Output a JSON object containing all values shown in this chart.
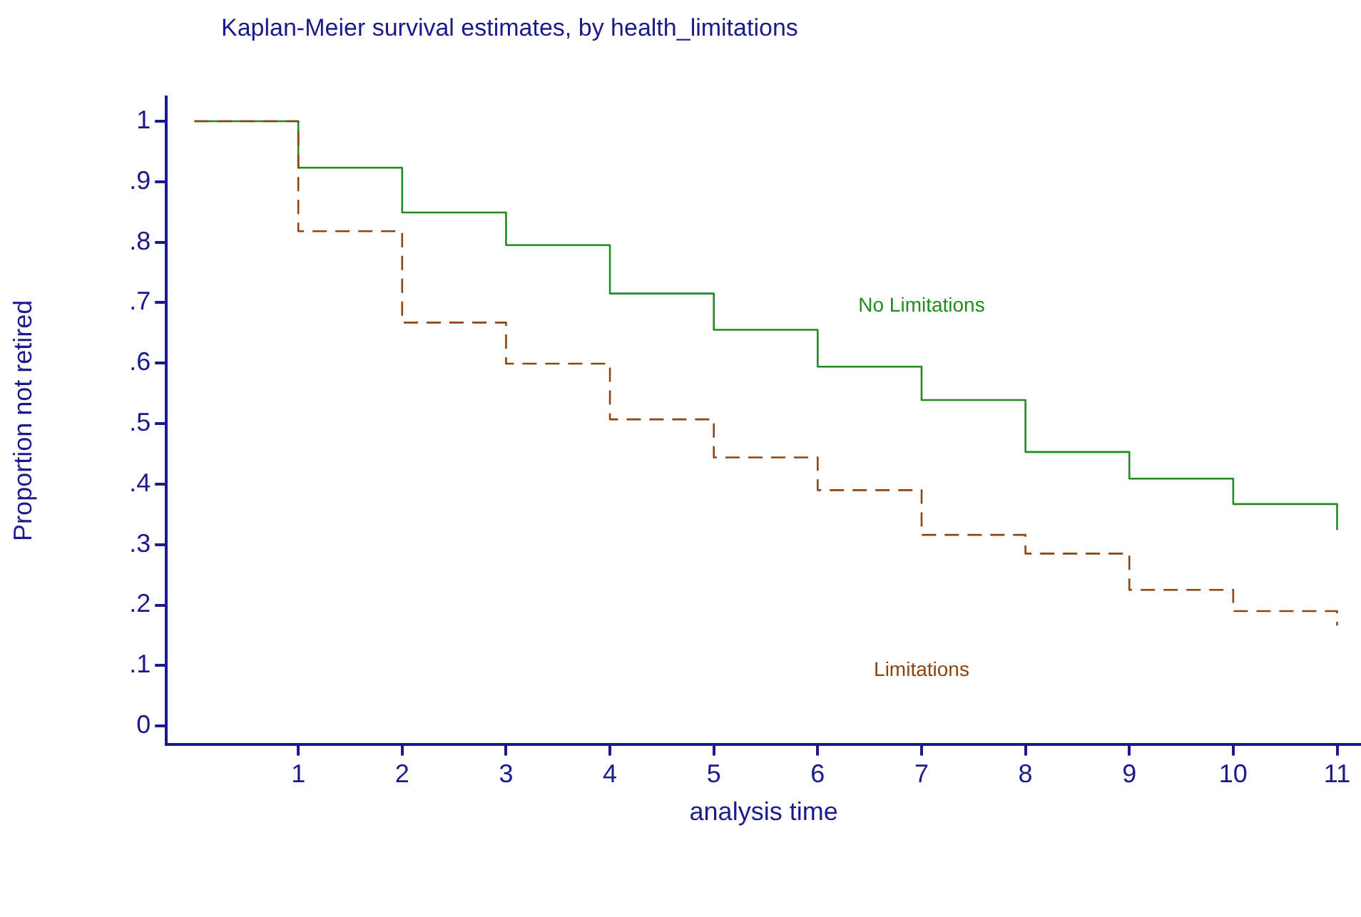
{
  "chart_data": {
    "type": "step",
    "title": "Kaplan-Meier survival estimates, by health_limitations",
    "xlabel": "analysis time",
    "ylabel": "Proportion not retired",
    "x": [
      0,
      1,
      2,
      3,
      4,
      5,
      6,
      7,
      8,
      9,
      10,
      11
    ],
    "series": [
      {
        "name": "No Limitations",
        "color": "#1e8c1e",
        "line_style": "solid",
        "values": [
          1,
          0.923,
          0.849,
          0.795,
          0.715,
          0.655,
          0.594,
          0.539,
          0.453,
          0.409,
          0.367,
          0.324
        ]
      },
      {
        "name": "Limitations",
        "color": "#8b4513",
        "line_style": "dashed",
        "values": [
          1,
          0.818,
          0.667,
          0.599,
          0.507,
          0.444,
          0.39,
          0.316,
          0.285,
          0.225,
          0.19,
          0.166
        ]
      }
    ],
    "xlim": [
      -0.27,
      11.23
    ],
    "xticks": [
      1,
      2,
      3,
      4,
      5,
      6,
      7,
      8,
      9,
      10,
      11
    ],
    "ylim": [
      -0.03,
      1.04
    ],
    "yticks": [
      0,
      {
        "value": 0.1,
        "label": ".1"
      },
      {
        "value": 0.2,
        "label": ".2"
      },
      {
        "value": 0.3,
        "label": ".3"
      },
      {
        "value": 0.4,
        "label": ".4"
      },
      {
        "value": 0.5,
        "label": ".5"
      },
      {
        "value": 0.6,
        "label": ".6"
      },
      {
        "value": 0.7,
        "label": ".7"
      },
      {
        "value": 0.8,
        "label": ".8"
      },
      {
        "value": 0.9,
        "label": ".9"
      },
      1
    ],
    "grid": false,
    "legend": false
  }
}
